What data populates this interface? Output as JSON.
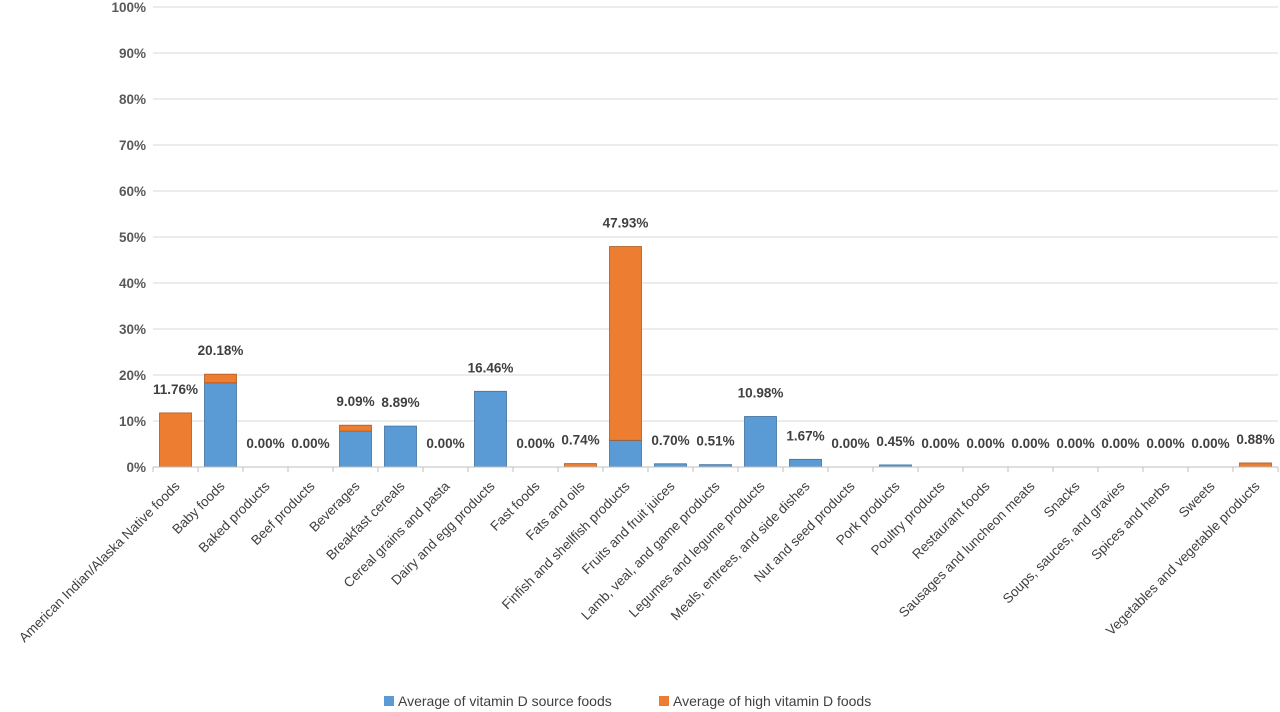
{
  "chart_data": {
    "type": "bar",
    "stacked": true,
    "categories": [
      "American Indian/Alaska Native foods",
      "Baby foods",
      "Baked products",
      "Beef products",
      "Beverages",
      "Breakfast cereals",
      "Cereal grains and pasta",
      "Dairy and egg products",
      "Fast foods",
      "Fats and oils",
      "Finfish and shellfish products",
      "Fruits and fruit juices",
      "Lamb, veal, and game products",
      "Legumes and legume products",
      "Meals, entrees, and side dishes",
      "Nut and seed products",
      "Pork products",
      "Poultry products",
      "Restaurant foods",
      "Sausages and luncheon meats",
      "Snacks",
      "Soups, sauces, and gravies",
      "Spices and herbs",
      "Sweets",
      "Vegetables and vegetable products"
    ],
    "series": [
      {
        "name": "Average of vitamin D source foods",
        "color": "#5b9bd5",
        "values": [
          0,
          18.3,
          0,
          0,
          7.8,
          8.89,
          0,
          16.46,
          0,
          0,
          5.8,
          0.7,
          0.51,
          10.98,
          1.67,
          0,
          0.45,
          0,
          0,
          0,
          0,
          0,
          0,
          0,
          0
        ]
      },
      {
        "name": "Average of high vitamin D foods",
        "color": "#ed7d31",
        "values": [
          11.76,
          1.88,
          0,
          0,
          1.29,
          0,
          0,
          0,
          0,
          0.74,
          42.13,
          0,
          0,
          0,
          0,
          0,
          0,
          0,
          0,
          0,
          0,
          0,
          0,
          0,
          0.88
        ]
      }
    ],
    "data_labels": [
      "11.76%",
      "20.18%",
      "0.00%",
      "0.00%",
      "9.09%",
      "8.89%",
      "0.00%",
      "16.46%",
      "0.00%",
      "0.74%",
      "47.93%",
      "0.70%",
      "0.51%",
      "10.98%",
      "1.67%",
      "0.00%",
      "0.45%",
      "0.00%",
      "0.00%",
      "0.00%",
      "0.00%",
      "0.00%",
      "0.00%",
      "0.00%",
      "0.88%"
    ],
    "totals": [
      11.76,
      20.18,
      0,
      0,
      9.09,
      8.89,
      0,
      16.46,
      0,
      0.74,
      47.93,
      0.7,
      0.51,
      10.98,
      1.67,
      0,
      0.45,
      0,
      0,
      0,
      0,
      0,
      0,
      0,
      0.88
    ],
    "y_ticks": [
      "0%",
      "10%",
      "20%",
      "30%",
      "40%",
      "50%",
      "60%",
      "70%",
      "80%",
      "90%",
      "100%"
    ],
    "ylim": [
      0,
      100
    ],
    "grid": true,
    "legend_position": "bottom",
    "title": "",
    "xlabel": "",
    "ylabel": ""
  }
}
